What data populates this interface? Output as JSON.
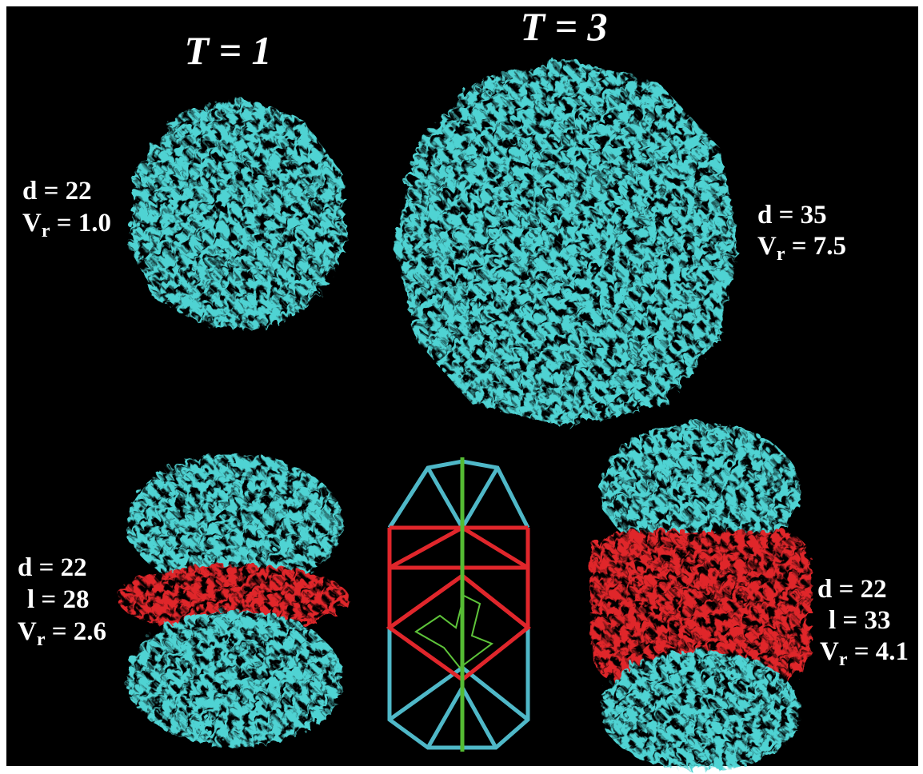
{
  "titles": [
    "T = 1",
    "T = 3"
  ],
  "labels": [
    {
      "lines": [
        "d = 22",
        {
          "base": "V",
          "sub": "r",
          "rest": " = 1.0"
        }
      ]
    },
    {
      "lines": [
        "d = 35",
        {
          "base": "V",
          "sub": "r",
          "rest": " = 7.5"
        }
      ]
    },
    {
      "lines": [
        "d = 22",
        "l = 28",
        {
          "base": "V",
          "sub": "r",
          "rest": " = 2.6"
        }
      ]
    },
    {
      "lines": [
        "d = 22",
        "l = 33",
        {
          "base": "V",
          "sub": "r",
          "rest": " = 4.1"
        }
      ]
    }
  ]
}
